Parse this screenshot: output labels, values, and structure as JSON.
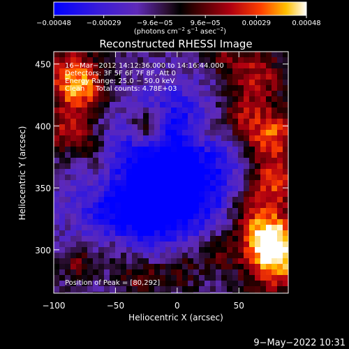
{
  "chart_data": {
    "type": "heatmap",
    "title": "Reconstructed RHESSI Image",
    "xlabel": "Heliocentric X (arcsec)",
    "ylabel": "Heliocentric Y (arcsec)",
    "xlim": [
      -100,
      90
    ],
    "ylim": [
      265,
      460
    ],
    "x_ticks": [
      -100,
      -50,
      0,
      50
    ],
    "y_ticks": [
      300,
      350,
      400,
      450
    ],
    "x_tick_labels": [
      "−100",
      "−50",
      "0",
      "50"
    ],
    "y_tick_labels": [
      "300",
      "350",
      "400",
      "450"
    ],
    "colorbar": {
      "range": [
        -0.00048,
        0.00048
      ],
      "ticks": [
        -0.00048,
        -0.00029,
        -9.6e-05,
        9.6e-05,
        0.00029,
        0.00048
      ],
      "tick_labels": [
        "−0.00048",
        "−0.00029",
        "−9.6e−05",
        "9.6e−05",
        "0.00029",
        "0.00048"
      ],
      "unit_prefix": "(photons cm",
      "unit_exp1": "−2",
      "unit_mid": " s",
      "unit_exp2": "−1",
      "unit_mid2": " asec",
      "unit_exp3": "−2",
      "unit_suffix": ")"
    },
    "annotations": [
      "16−Mar−2012 14:12:36.000 to 14:16:44.000",
      "Detectors: 3F 5F 6F 7F 8F, Att 0",
      "Energy Range: 25.0 − 50.0 keV",
      "Clean     Total counts: 4.78E+03"
    ],
    "peak_label": "Position of Peak = [80,292]",
    "peak": [
      80,
      292
    ],
    "grid": false
  },
  "footer": {
    "date": "9−May−2022 10:31"
  }
}
